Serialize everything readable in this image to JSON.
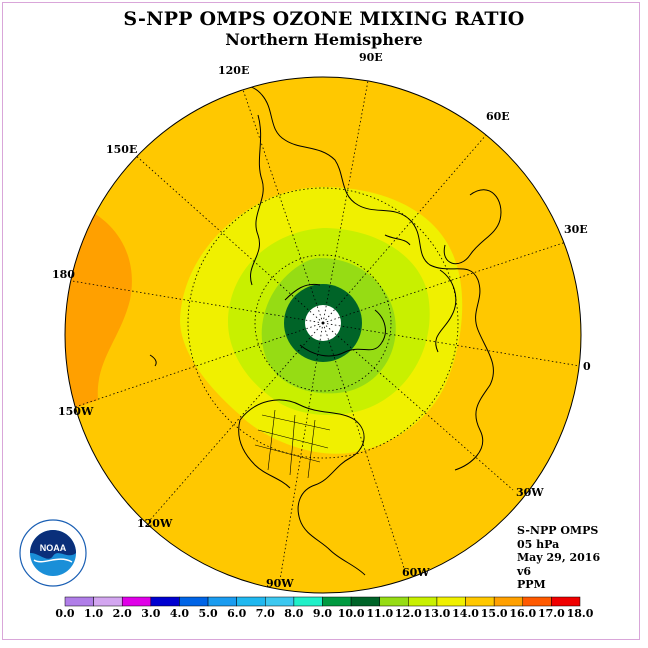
{
  "title": "S-NPP OMPS OZONE MIXING RATIO",
  "subtitle": "Northern Hemisphere",
  "longitude_labels": [
    "90E",
    "60E",
    "30E",
    "0",
    "30W",
    "60W",
    "90W",
    "120W",
    "150W",
    "180",
    "150E",
    "120E"
  ],
  "info": {
    "instrument": "S-NPP OMPS",
    "pressure": "05 hPa",
    "date": "May 29, 2016",
    "version": "v6",
    "units": "PPM"
  },
  "logo_text": "NOAA",
  "colorbar": {
    "ticks": [
      "0.0",
      "1.0",
      "2.0",
      "3.0",
      "4.0",
      "5.0",
      "6.0",
      "7.0",
      "8.0",
      "9.0",
      "10.0",
      "11.0",
      "12.0",
      "13.0",
      "14.0",
      "15.0",
      "16.0",
      "17.0",
      "18.0"
    ],
    "colors": [
      "#b07ee8",
      "#d3a6f0",
      "#e000e8",
      "#0000d0",
      "#0064e6",
      "#1a9cf0",
      "#20b8f0",
      "#3cc8f0",
      "#20f0c8",
      "#009a40",
      "#006428",
      "#96dc14",
      "#c8f000",
      "#f0f000",
      "#ffc800",
      "#ffa000",
      "#ff5a00",
      "#f00000",
      "#8c5030"
    ]
  },
  "chart_data": {
    "type": "polar-contour-map",
    "variable": "ozone mixing ratio",
    "units": "PPM",
    "pressure_level": "05 hPa",
    "date": "May 29, 2016",
    "projection": "north polar stereographic",
    "color_scale_min": 0.0,
    "color_scale_max": 18.0,
    "color_interval": 1.0,
    "visible_value_bands": [
      "9.0-10.0 (polar core)",
      "10.0-11.0",
      "11.0-12.0",
      "12.0-13.0",
      "13.0-14.0 (outer ring)",
      "14.0-15.0 (near 180)"
    ],
    "no_data": "pole (white disk)"
  }
}
